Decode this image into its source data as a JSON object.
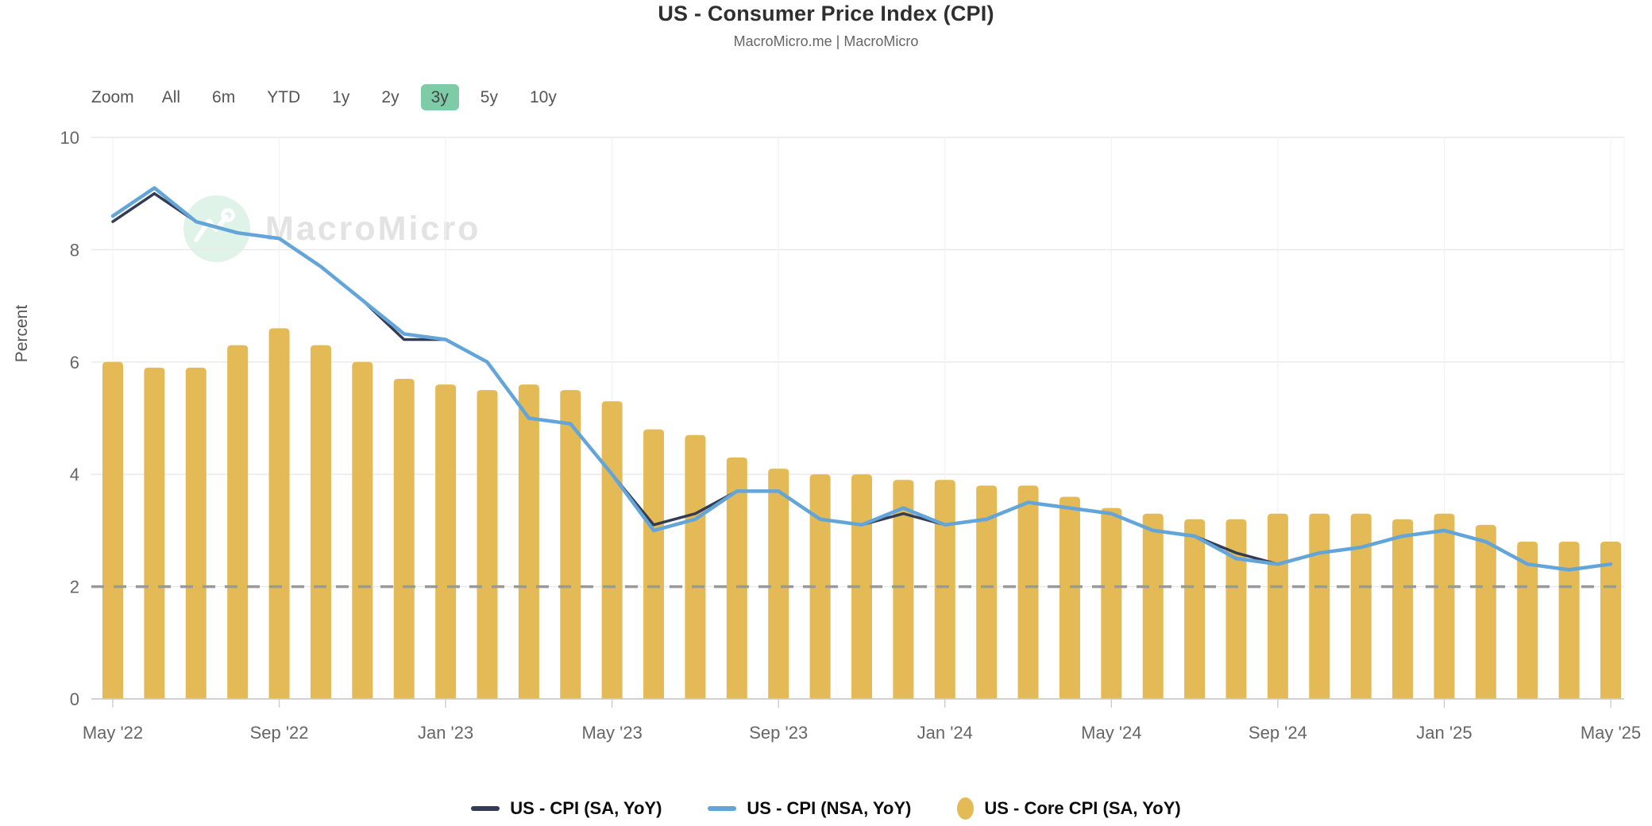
{
  "header": {
    "title": "US - Consumer Price Index (CPI)",
    "subtitle": "MacroMicro.me | MacroMicro"
  },
  "toolbar": {
    "zoom_label": "Zoom",
    "ranges": [
      {
        "label": "All",
        "selected": false
      },
      {
        "label": "6m",
        "selected": false
      },
      {
        "label": "YTD",
        "selected": false
      },
      {
        "label": "1y",
        "selected": false
      },
      {
        "label": "2y",
        "selected": false
      },
      {
        "label": "3y",
        "selected": true
      },
      {
        "label": "5y",
        "selected": false
      },
      {
        "label": "10y",
        "selected": false
      }
    ]
  },
  "watermark": {
    "text": "MacroMicro",
    "circle_color": "#e0f3e9",
    "text_color": "#e3e3e3"
  },
  "chart_data": {
    "type": "combo",
    "title": "US - Consumer Price Index (CPI)",
    "xlabel": "",
    "ylabel": "Percent",
    "ylim": [
      0,
      10
    ],
    "y_ticks": [
      0,
      2,
      4,
      6,
      8,
      10
    ],
    "grid": true,
    "legend_position": "bottom",
    "reference_line": {
      "value": 2,
      "style": "dashed",
      "color": "#999999"
    },
    "categories": [
      "May 2022",
      "Jun 2022",
      "Jul 2022",
      "Aug 2022",
      "Sep 2022",
      "Oct 2022",
      "Nov 2022",
      "Dec 2022",
      "Jan 2023",
      "Feb 2023",
      "Mar 2023",
      "Apr 2023",
      "May 2023",
      "Jun 2023",
      "Jul 2023",
      "Aug 2023",
      "Sep 2023",
      "Oct 2023",
      "Nov 2023",
      "Dec 2023",
      "Jan 2024",
      "Feb 2024",
      "Mar 2024",
      "Apr 2024",
      "May 2024",
      "Jun 2024",
      "Jul 2024",
      "Aug 2024",
      "Sep 2024",
      "Oct 2024",
      "Nov 2024",
      "Dec 2024",
      "Jan 2025",
      "Feb 2025",
      "Mar 2025",
      "Apr 2025",
      "May 2025"
    ],
    "x_tick_every": 4,
    "x_tick_labels": [
      "May '22",
      "Sep '22",
      "Jan '23",
      "May '23",
      "Sep '23",
      "Jan '24",
      "May '24",
      "Sep '24",
      "Jan '25",
      "May '25"
    ],
    "series": [
      {
        "name": "US - CPI (SA, YoY)",
        "type": "line",
        "color": "#343c55",
        "values": [
          8.5,
          9.0,
          8.5,
          8.3,
          8.2,
          7.7,
          7.1,
          6.4,
          6.4,
          6.0,
          5.0,
          4.9,
          4.0,
          3.1,
          3.3,
          3.7,
          3.7,
          3.2,
          3.1,
          3.3,
          3.1,
          3.2,
          3.5,
          3.4,
          3.3,
          3.0,
          2.9,
          2.6,
          2.4,
          2.6,
          2.7,
          2.9,
          3.0,
          2.8,
          2.4,
          2.3,
          2.4
        ]
      },
      {
        "name": "US - CPI (NSA, YoY)",
        "type": "line",
        "color": "#63a5d9",
        "values": [
          8.6,
          9.1,
          8.5,
          8.3,
          8.2,
          7.7,
          7.1,
          6.5,
          6.4,
          6.0,
          5.0,
          4.9,
          4.0,
          3.0,
          3.2,
          3.7,
          3.7,
          3.2,
          3.1,
          3.4,
          3.1,
          3.2,
          3.5,
          3.4,
          3.3,
          3.0,
          2.9,
          2.5,
          2.4,
          2.6,
          2.7,
          2.9,
          3.0,
          2.8,
          2.4,
          2.3,
          2.4
        ]
      },
      {
        "name": "US - Core CPI (SA, YoY)",
        "type": "bar",
        "color": "#e3ba55",
        "values": [
          6.0,
          5.9,
          5.9,
          6.3,
          6.6,
          6.3,
          6.0,
          5.7,
          5.6,
          5.5,
          5.6,
          5.5,
          5.3,
          4.8,
          4.7,
          4.3,
          4.1,
          4.0,
          4.0,
          3.9,
          3.9,
          3.8,
          3.8,
          3.6,
          3.4,
          3.3,
          3.2,
          3.2,
          3.3,
          3.3,
          3.3,
          3.2,
          3.3,
          3.1,
          2.8,
          2.8,
          2.8
        ]
      }
    ],
    "colors": {
      "grid": "#e8e8e8",
      "grid_vertical": "#f2f2f2",
      "axis_line": "#cccccc",
      "tick_mark": "#cccccc",
      "axis_label": "#666666",
      "axis_title": "#555555"
    }
  }
}
